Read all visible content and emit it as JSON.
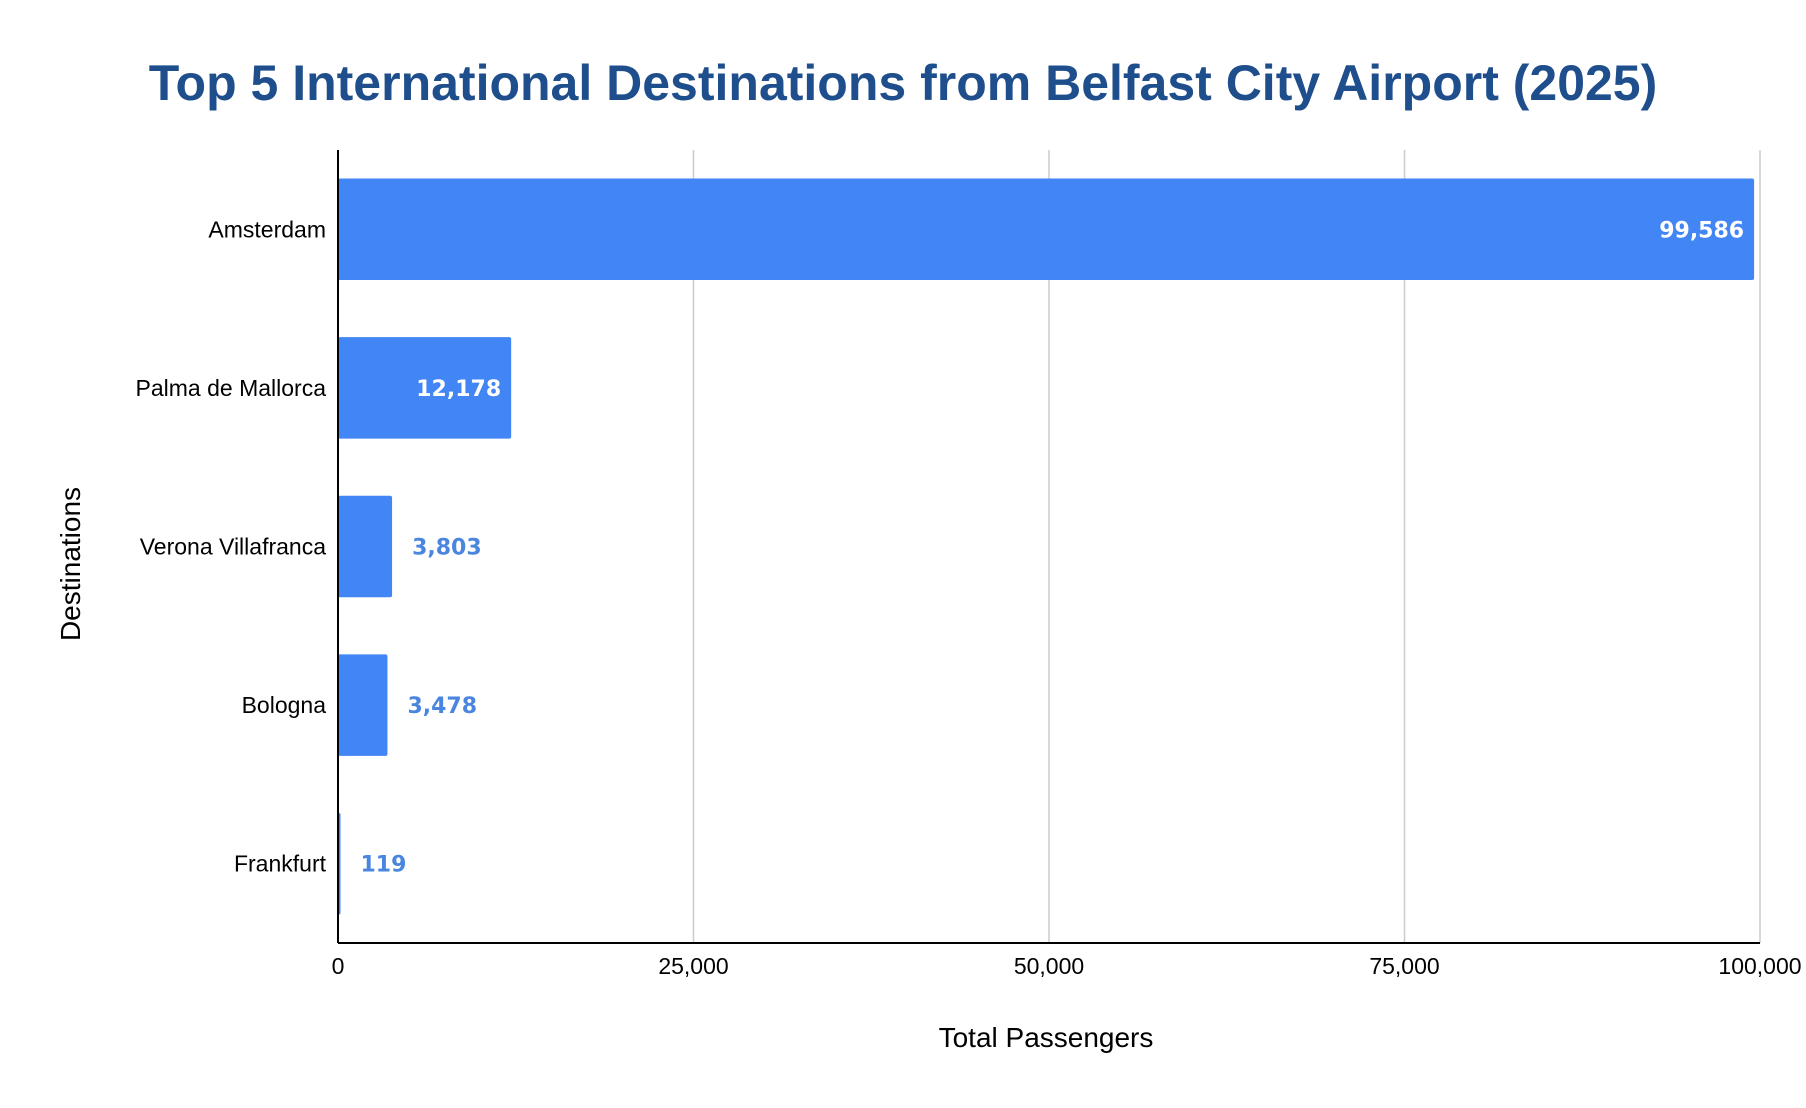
{
  "chart_data": {
    "type": "bar",
    "orientation": "horizontal",
    "title": "Top 5 International Destinations from Belfast City Airport (2025)",
    "xlabel": "Total Passengers",
    "ylabel": "Destinations",
    "categories": [
      "Amsterdam",
      "Palma de Mallorca",
      "Verona Villafranca",
      "Bologna",
      "Frankfurt"
    ],
    "values": [
      99586,
      12178,
      3803,
      3478,
      119
    ],
    "value_labels": [
      "99,586",
      "12,178",
      "3,803",
      "3,478",
      "119"
    ],
    "xlim": [
      0,
      100000
    ],
    "x_ticks": [
      0,
      25000,
      50000,
      75000,
      100000
    ],
    "x_tick_labels": [
      "0",
      "25,000",
      "50,000",
      "75,000",
      "100,000"
    ],
    "grid": "vertical",
    "legend": "none",
    "colors": {
      "bar": "#4285f4",
      "title": "#1f4e8c",
      "label_inside": "#ffffff",
      "label_outside": "#4a86e0",
      "grid": "#cccccc",
      "axis": "#000000"
    }
  }
}
